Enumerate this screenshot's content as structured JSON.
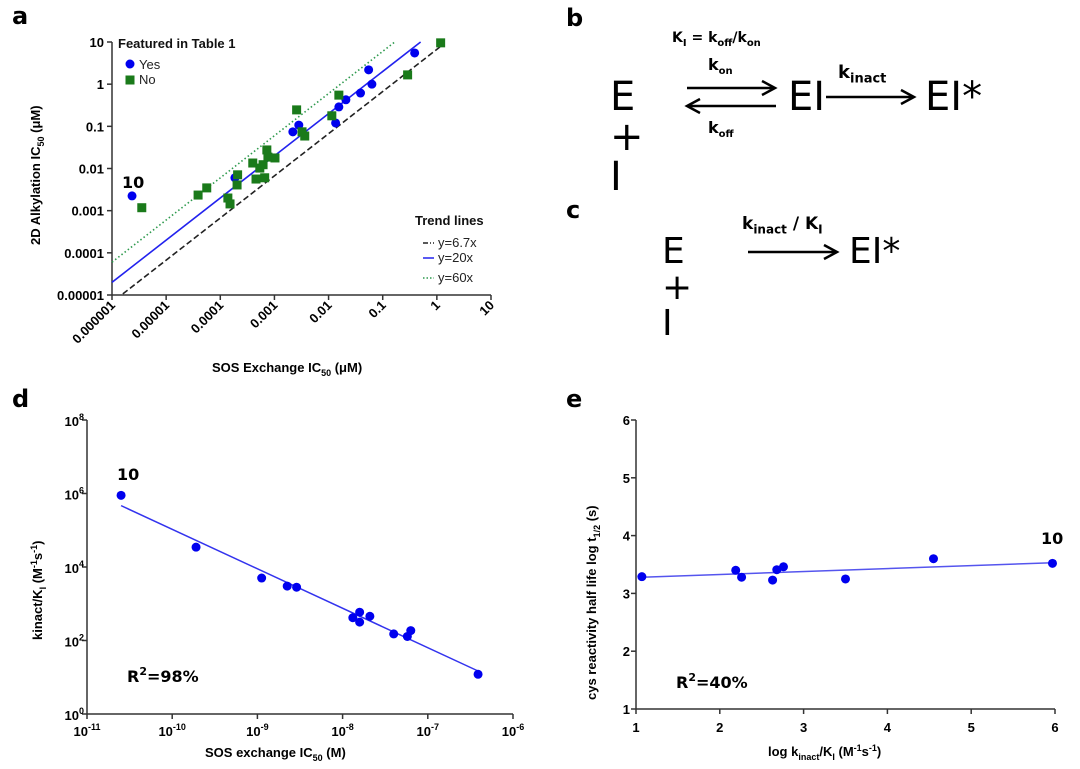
{
  "panels": {
    "a": "a",
    "b": "b",
    "c": "c",
    "d": "d",
    "e": "e"
  },
  "scheme_b": {
    "equilibrium_label": {
      "main": "K",
      "sub_main": "I",
      "eq": " = k",
      "sub_off": "off",
      "slash": "/k",
      "sub_on": "on"
    },
    "kon": {
      "k": "k",
      "sub": "on"
    },
    "koff": {
      "k": "k",
      "sub": "off"
    },
    "kinact": {
      "k": "k",
      "sub": "inact"
    },
    "reactants": "E + I",
    "intermediate": "EI",
    "product": "EI*"
  },
  "scheme_c": {
    "reactants": "E + I",
    "rate": {
      "k": "k",
      "sub": "inact",
      "slash": " / K",
      "sub2": "I"
    },
    "product": "EI*"
  },
  "chart_data": [
    {
      "id": "a",
      "type": "scatter",
      "xscale": "log",
      "yscale": "log",
      "xlabel": "SOS Exchange IC50 (μM)",
      "ylabel": "2D Alkylation IC50 (μM)",
      "xlim": [
        1e-06,
        10
      ],
      "ylim": [
        1e-05,
        10
      ],
      "xticks": [
        "0.000001",
        "0.00001",
        "0.0001",
        "0.001",
        "0.01",
        "0.1",
        "1",
        "10"
      ],
      "yticks": [
        "0.00001",
        "0.0001",
        "0.001",
        "0.01",
        "0.1",
        "1",
        "10"
      ],
      "legend": {
        "title": "Featured in Table 1",
        "position": "top-left"
      },
      "trend_legend": {
        "title": "Trend lines",
        "position": "bottom-right"
      },
      "series": [
        {
          "name": "Yes",
          "marker": "circle",
          "color": "#0000ee",
          "points_log10": [
            [
              -5.63,
              -2.65
            ],
            [
              -3.73,
              -2.22
            ],
            [
              -2.66,
              -1.13
            ],
            [
              -2.55,
              -0.97
            ],
            [
              -1.87,
              -0.92
            ],
            [
              -1.81,
              -0.54
            ],
            [
              -1.68,
              -0.37
            ],
            [
              -1.41,
              -0.21
            ],
            [
              -1.2,
              0.0
            ],
            [
              -1.26,
              0.34
            ],
            [
              -0.41,
              0.74
            ]
          ]
        },
        {
          "name": "No",
          "marker": "square",
          "color": "#1a7a1a",
          "points_log10": [
            [
              -5.45,
              -2.93
            ],
            [
              -4.41,
              -2.63
            ],
            [
              -4.25,
              -2.46
            ],
            [
              -3.86,
              -2.7
            ],
            [
              -3.82,
              -2.84
            ],
            [
              -3.69,
              -2.39
            ],
            [
              -3.68,
              -2.15
            ],
            [
              -3.4,
              -1.87
            ],
            [
              -3.34,
              -2.25
            ],
            [
              -3.18,
              -2.22
            ],
            [
              -3.14,
              -1.56
            ],
            [
              -3.12,
              -1.73
            ],
            [
              -2.99,
              -1.75
            ],
            [
              -3.21,
              -1.91
            ],
            [
              -3.27,
              -1.99
            ],
            [
              -2.59,
              -0.61
            ],
            [
              -2.49,
              -1.13
            ],
            [
              -2.44,
              -1.23
            ],
            [
              -1.94,
              -0.75
            ],
            [
              -1.81,
              -0.26
            ],
            [
              -0.54,
              0.22
            ],
            [
              0.07,
              0.98
            ]
          ]
        }
      ],
      "trend_lines": [
        {
          "name": "y=6.7x",
          "factor": 6.7,
          "style": "dashed",
          "color": "#222222",
          "x_range_log10": [
            -5.8,
            0.1
          ]
        },
        {
          "name": "y=20x",
          "factor": 20,
          "style": "solid",
          "color": "#2222ee",
          "x_range_log10": [
            -6,
            -0.3
          ]
        },
        {
          "name": "y=60x",
          "factor": 60,
          "style": "dotted",
          "color": "#2e9a4e",
          "x_range_log10": [
            -6,
            -0.78
          ]
        }
      ],
      "annotations": [
        {
          "text": "10",
          "near_log10": [
            -5.63,
            -2.65
          ]
        }
      ]
    },
    {
      "id": "d",
      "type": "scatter",
      "xscale": "log",
      "yscale": "log",
      "xlabel": "SOS exchange IC50 (M)",
      "ylabel": "kinact/KI (M-1s-1)",
      "xlim_log10": [
        -11,
        -6
      ],
      "ylim_log10": [
        0,
        8
      ],
      "xticks": [
        "-11",
        "-10",
        "-9",
        "-8",
        "-7",
        "-6"
      ],
      "yticks": [
        "0",
        "2",
        "4",
        "6",
        "8"
      ],
      "series": [
        {
          "name": "compounds",
          "marker": "circle",
          "color": "#0000ee",
          "points_log10": [
            [
              -10.6,
              5.95
            ],
            [
              -9.72,
              4.54
            ],
            [
              -8.95,
              3.7
            ],
            [
              -8.65,
              3.48
            ],
            [
              -8.54,
              3.45
            ],
            [
              -7.88,
              2.62
            ],
            [
              -7.8,
              2.77
            ],
            [
              -7.8,
              2.5
            ],
            [
              -7.68,
              2.66
            ],
            [
              -7.4,
              2.18
            ],
            [
              -7.24,
              2.11
            ],
            [
              -7.2,
              2.27
            ],
            [
              -6.41,
              1.08
            ]
          ]
        }
      ],
      "fit_line_log10": [
        [
          -10.6,
          5.67
        ],
        [
          -6.41,
          1.17
        ]
      ],
      "fit_color": "#3333ee",
      "r2": {
        "label": "R",
        "sup": "2",
        "value": "=98%"
      },
      "annotations": [
        {
          "text": "10",
          "near_log10": [
            -10.6,
            5.95
          ]
        }
      ]
    },
    {
      "id": "e",
      "type": "scatter",
      "xlabel": "log kinact/KI (M-1s-1)",
      "ylabel": "cys reactivity half life log t1/2 (s)",
      "xlim": [
        1,
        6
      ],
      "ylim": [
        1,
        6
      ],
      "xticks": [
        "1",
        "2",
        "3",
        "4",
        "5",
        "6"
      ],
      "yticks": [
        "1",
        "2",
        "3",
        "4",
        "5",
        "6"
      ],
      "series": [
        {
          "name": "compounds",
          "marker": "circle",
          "color": "#0000ee",
          "points": [
            [
              1.07,
              3.29
            ],
            [
              2.19,
              3.4
            ],
            [
              2.26,
              3.28
            ],
            [
              2.63,
              3.23
            ],
            [
              2.68,
              3.41
            ],
            [
              2.76,
              3.46
            ],
            [
              3.5,
              3.25
            ],
            [
              4.55,
              3.6
            ],
            [
              5.97,
              3.52
            ]
          ]
        }
      ],
      "fit_line": [
        [
          1.07,
          3.28
        ],
        [
          5.97,
          3.53
        ]
      ],
      "fit_color": "#5555ee",
      "r2": {
        "label": "R",
        "sup": "2",
        "value": "=40%"
      },
      "annotations": [
        {
          "text": "10",
          "near": [
            5.97,
            3.52
          ]
        }
      ]
    }
  ],
  "axis_text": {
    "a_xlabel": {
      "pre": "SOS Exchange IC",
      "sub": "50",
      "post": " (μM)"
    },
    "a_ylabel": {
      "pre": "2D Alkylation IC",
      "sub": "50",
      "post": " (μM)"
    },
    "d_xlabel": {
      "pre": "SOS exchange IC",
      "sub": "50",
      "post": " (M)"
    },
    "d_ylabel": {
      "pre": "kinact/K",
      "sub": "I",
      "mid": " (M",
      "sup1": "-1",
      "s": "s",
      "sup2": "-1",
      "post": ")"
    },
    "e_xlabel": {
      "pre": "log k",
      "sub": "inact",
      "mid": "/K",
      "sub2": "I",
      "m": " (M",
      "sup1": "-1",
      "s": "s",
      "sup2": "-1",
      "post": ")"
    },
    "e_ylabel": {
      "pre": "cys reactivity half life log t",
      "sub": "1/2",
      "post": " (s)"
    },
    "legend_yes": "Yes",
    "legend_no": "No"
  }
}
